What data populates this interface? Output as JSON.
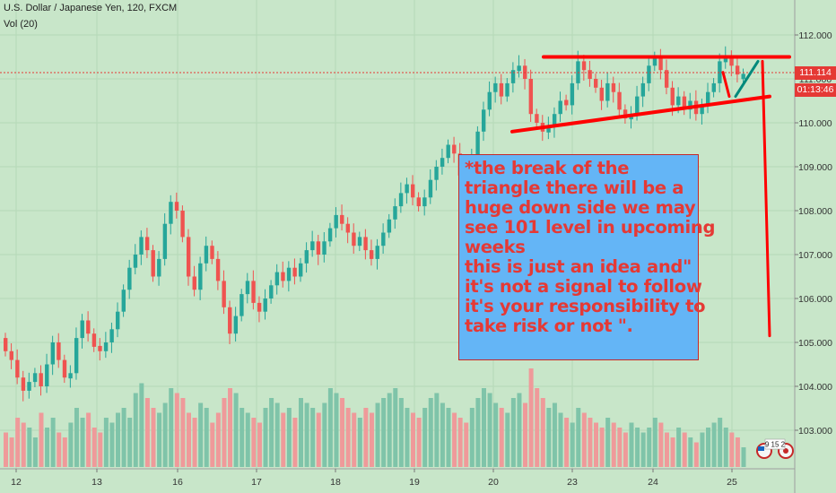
{
  "header": {
    "symbol": "U.S. Dollar / Japanese Yen, 120, FXCM",
    "volume": "Vol (20)"
  },
  "price_tag": "111.114",
  "time_tag": "01:13:46",
  "annotation": {
    "lines": [
      "*the break of  the",
      "triangle  there will  be  a",
      "huge  down side  we may",
      "see 101 level in upcoming",
      "weeks",
      "this is just an idea and\"",
      "it's not a signal to follow",
      "it's your responsibility to",
      "take risk or not \"."
    ]
  },
  "widget": {
    "label": "9 15 2"
  },
  "colors": {
    "background": "#c8e6c9",
    "up_candle": "#26a69a",
    "down_candle": "#ef5350",
    "up_volume": "#7fc4a9",
    "down_volume": "#ef9a9a",
    "drawing_red": "#ff0000",
    "drawing_teal": "#00897b",
    "note_fill": "#64b5f6"
  },
  "chart_data": {
    "type": "candlestick",
    "y_axis": {
      "range": [
        102.4,
        112.4
      ],
      "ticks": [
        103.0,
        104.0,
        105.0,
        106.0,
        107.0,
        108.0,
        109.0,
        110.0,
        111.0,
        112.0
      ],
      "side": "right"
    },
    "x_axis": {
      "tick_labels": [
        "12",
        "13",
        "16",
        "17",
        "18",
        "19",
        "20",
        "23",
        "24",
        "25"
      ]
    },
    "last_price": 111.114,
    "candles_close": [
      104.8,
      104.6,
      104.2,
      103.9,
      104.1,
      104.3,
      104.0,
      104.5,
      105.0,
      104.6,
      104.2,
      104.3,
      105.1,
      105.5,
      105.2,
      104.9,
      104.8,
      105.0,
      105.3,
      105.7,
      106.2,
      106.7,
      107.0,
      107.4,
      107.1,
      106.5,
      106.9,
      107.7,
      108.2,
      108.0,
      107.4,
      106.5,
      106.2,
      106.8,
      107.2,
      106.9,
      106.4,
      105.8,
      105.2,
      105.6,
      106.1,
      106.4,
      105.9,
      105.7,
      106.0,
      106.3,
      106.6,
      106.4,
      106.7,
      106.5,
      106.8,
      107.1,
      107.3,
      107.0,
      107.3,
      107.6,
      107.9,
      107.7,
      107.5,
      107.2,
      107.4,
      107.1,
      106.9,
      107.2,
      107.5,
      107.8,
      108.1,
      108.4,
      108.6,
      108.3,
      108.1,
      108.3,
      108.7,
      109.0,
      109.2,
      109.5,
      109.3,
      108.8,
      108.6,
      109.2,
      109.8,
      110.3,
      110.7,
      110.9,
      110.6,
      110.9,
      111.2,
      111.3,
      111.0,
      110.2,
      110.0,
      109.8,
      109.9,
      110.2,
      110.5,
      110.4,
      110.9,
      111.4,
      111.2,
      111.0,
      110.8,
      110.5,
      110.9,
      110.7,
      110.3,
      110.1,
      110.2,
      110.6,
      110.9,
      111.3,
      111.5,
      111.2,
      110.8,
      110.4,
      110.6,
      110.3,
      110.5,
      110.2,
      110.4,
      110.7,
      110.9,
      111.4,
      111.5,
      111.3,
      111.1,
      111.114
    ],
    "candles_up": [
      false,
      false,
      false,
      false,
      true,
      true,
      false,
      true,
      true,
      false,
      false,
      true,
      true,
      true,
      false,
      false,
      false,
      true,
      true,
      true,
      true,
      true,
      true,
      true,
      false,
      false,
      true,
      true,
      true,
      false,
      false,
      false,
      false,
      true,
      true,
      false,
      false,
      false,
      false,
      true,
      true,
      true,
      false,
      false,
      true,
      true,
      true,
      false,
      true,
      false,
      true,
      true,
      true,
      false,
      true,
      true,
      true,
      false,
      false,
      false,
      true,
      false,
      false,
      true,
      true,
      true,
      true,
      true,
      true,
      false,
      false,
      true,
      true,
      true,
      true,
      true,
      false,
      false,
      false,
      true,
      true,
      true,
      true,
      true,
      false,
      true,
      true,
      true,
      false,
      false,
      false,
      false,
      true,
      true,
      true,
      false,
      true,
      true,
      false,
      false,
      false,
      false,
      true,
      false,
      false,
      false,
      true,
      true,
      true,
      true,
      true,
      false,
      false,
      false,
      true,
      false,
      true,
      false,
      true,
      true,
      true,
      true,
      true,
      false,
      false,
      true
    ],
    "volume_relative": [
      0.35,
      0.3,
      0.5,
      0.45,
      0.4,
      0.3,
      0.55,
      0.4,
      0.5,
      0.35,
      0.3,
      0.45,
      0.6,
      0.5,
      0.55,
      0.4,
      0.35,
      0.5,
      0.45,
      0.55,
      0.6,
      0.5,
      0.75,
      0.85,
      0.7,
      0.6,
      0.55,
      0.65,
      0.8,
      0.75,
      0.7,
      0.55,
      0.5,
      0.65,
      0.6,
      0.45,
      0.55,
      0.7,
      0.8,
      0.75,
      0.6,
      0.55,
      0.5,
      0.45,
      0.6,
      0.7,
      0.65,
      0.55,
      0.6,
      0.5,
      0.7,
      0.65,
      0.6,
      0.55,
      0.65,
      0.8,
      0.75,
      0.7,
      0.6,
      0.55,
      0.5,
      0.6,
      0.55,
      0.65,
      0.7,
      0.75,
      0.8,
      0.7,
      0.6,
      0.55,
      0.5,
      0.6,
      0.7,
      0.75,
      0.65,
      0.6,
      0.55,
      0.5,
      0.45,
      0.6,
      0.7,
      0.8,
      0.75,
      0.65,
      0.6,
      0.55,
      0.7,
      0.75,
      0.65,
      1.0,
      0.8,
      0.7,
      0.6,
      0.65,
      0.55,
      0.5,
      0.45,
      0.6,
      0.55,
      0.5,
      0.45,
      0.4,
      0.5,
      0.45,
      0.4,
      0.35,
      0.45,
      0.4,
      0.35,
      0.4,
      0.5,
      0.45,
      0.35,
      0.3,
      0.4,
      0.35,
      0.3,
      0.25,
      0.35,
      0.4,
      0.45,
      0.5,
      0.4,
      0.35,
      0.3,
      0.2
    ],
    "drawings": [
      {
        "type": "resistance",
        "from": [
          606,
          111.5
        ],
        "to": [
          880,
          111.5
        ],
        "color": "red"
      },
      {
        "type": "support",
        "from": [
          571,
          109.8
        ],
        "to": [
          858,
          110.6
        ],
        "color": "red"
      },
      {
        "type": "projection",
        "from": [
          850,
          111.4
        ],
        "to": [
          858,
          105.15
        ],
        "color": "red"
      },
      {
        "type": "path-down",
        "from": [
          806,
          111.15
        ],
        "to": [
          813,
          110.6
        ],
        "color": "red"
      },
      {
        "type": "path-up",
        "from": [
          820,
          110.6
        ],
        "to": [
          845,
          111.4
        ],
        "color": "teal"
      }
    ]
  }
}
